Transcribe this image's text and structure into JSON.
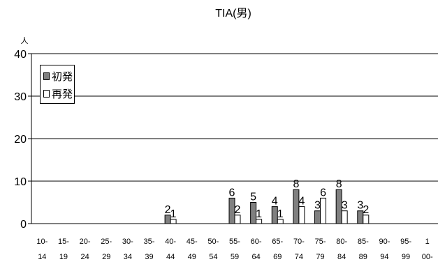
{
  "chart_data": {
    "type": "bar",
    "title": "TIA(男)",
    "ylabel": "人",
    "xlabel": "",
    "ylim": [
      0,
      40
    ],
    "yticks": [
      0,
      10,
      20,
      30,
      40
    ],
    "grid": true,
    "legend_position": "top-left",
    "categories": [
      [
        "10-",
        "14"
      ],
      [
        "15-",
        "19"
      ],
      [
        "20-",
        "24"
      ],
      [
        "25-",
        "29"
      ],
      [
        "30-",
        "34"
      ],
      [
        "35-",
        "39"
      ],
      [
        "40-",
        "44"
      ],
      [
        "45-",
        "49"
      ],
      [
        "50-",
        "54"
      ],
      [
        "55-",
        "59"
      ],
      [
        "60-",
        "64"
      ],
      [
        "65-",
        "69"
      ],
      [
        "70-",
        "74"
      ],
      [
        "75-",
        "79"
      ],
      [
        "80-",
        "84"
      ],
      [
        "85-",
        "89"
      ],
      [
        "90-",
        "94"
      ],
      [
        "95-",
        "99"
      ],
      [
        "1",
        "00-"
      ]
    ],
    "series": [
      {
        "name": "初発",
        "color": "#808080",
        "values": [
          0,
          0,
          0,
          0,
          0,
          0,
          2,
          0,
          0,
          6,
          5,
          4,
          8,
          3,
          8,
          3,
          0,
          0,
          0
        ]
      },
      {
        "name": "再発",
        "color": "#ffffff",
        "values": [
          0,
          0,
          0,
          0,
          0,
          0,
          1,
          0,
          0,
          2,
          1,
          1,
          4,
          6,
          3,
          2,
          0,
          0,
          0
        ]
      }
    ]
  }
}
